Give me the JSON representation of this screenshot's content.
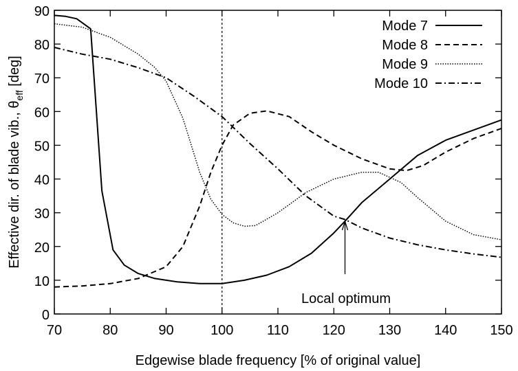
{
  "chart_data": {
    "type": "line",
    "xlabel": "Edgewise blade frequency [% of original value]",
    "ylabel": "Effective dir. of blade vib., θ",
    "ylabel_sub": "eff",
    "ylabel_unit": " [deg]",
    "xlim": [
      70,
      150
    ],
    "ylim": [
      0,
      90
    ],
    "xticks": [
      70,
      80,
      90,
      100,
      110,
      120,
      130,
      140,
      150
    ],
    "yticks": [
      0,
      10,
      20,
      30,
      40,
      50,
      60,
      70,
      80,
      90
    ],
    "grid": false,
    "legend_placement": "top-right",
    "reference_line": {
      "x": 100,
      "style": "dotted"
    },
    "annotation": {
      "text": "Local optimum",
      "x": 122,
      "y_text": 7.5,
      "arrow_from": 11.8,
      "arrow_to": 27.5
    },
    "series": [
      {
        "name": "Mode 7",
        "style": "solid",
        "x": [
          70,
          72,
          74,
          76.5,
          78.5,
          80.5,
          82.5,
          85,
          88,
          92,
          96,
          100,
          104,
          108,
          112,
          116,
          120,
          122,
          125,
          130,
          135,
          140,
          145,
          150
        ],
        "y": [
          88.5,
          88.2,
          87.5,
          84.5,
          36.5,
          19,
          14.5,
          12,
          10.5,
          9.5,
          9,
          9,
          10,
          11.5,
          14,
          18,
          24,
          27.5,
          33,
          40,
          47,
          51.5,
          54.5,
          57.5
        ]
      },
      {
        "name": "Mode 8",
        "style": "dashed",
        "x": [
          70,
          75,
          80,
          85,
          90,
          93,
          96,
          98,
          100,
          102,
          105,
          108,
          112,
          116,
          120,
          125,
          130,
          133,
          136,
          140,
          145,
          150
        ],
        "y": [
          8,
          8.3,
          9,
          10.5,
          14,
          20,
          32,
          42,
          50,
          56,
          59.5,
          60.2,
          58.5,
          54,
          50,
          46,
          43,
          42.5,
          44,
          48,
          52,
          55
        ]
      },
      {
        "name": "Mode 9",
        "style": "dotted",
        "x": [
          70,
          75,
          80,
          85,
          88,
          90,
          93,
          96,
          98,
          100,
          102,
          104,
          106,
          110,
          115,
          120,
          125,
          128,
          132,
          135,
          140,
          145,
          150
        ],
        "y": [
          86,
          85,
          82,
          77,
          73,
          69,
          58,
          42,
          34,
          29.5,
          27,
          26,
          26.2,
          30,
          36,
          40,
          42,
          42,
          39,
          34.5,
          27.5,
          23.5,
          22
        ]
      },
      {
        "name": "Mode 10",
        "style": "dashdot",
        "x": [
          70,
          75,
          80,
          85,
          90,
          95,
          100,
          105,
          110,
          115,
          120,
          122,
          125,
          130,
          135,
          140,
          145,
          150
        ],
        "y": [
          79,
          77,
          75.5,
          73,
          70,
          64.5,
          58.5,
          50.5,
          43,
          35,
          29,
          28,
          25.5,
          22.5,
          20.5,
          19,
          17.8,
          16.8
        ]
      }
    ]
  }
}
